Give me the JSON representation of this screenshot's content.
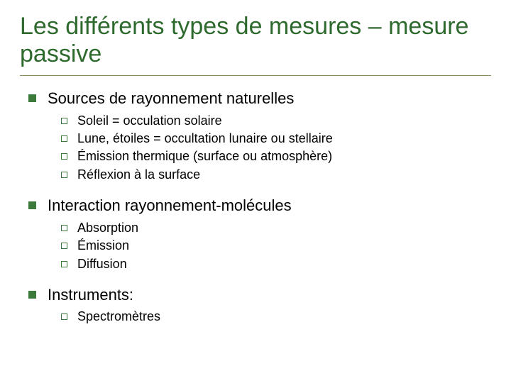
{
  "slide": {
    "title": "Les différents types de mesures – mesure passive",
    "title_color": "#2e6a2e",
    "rule_color": "#8a8a5a",
    "l1_bullet_color": "#3b7a3b",
    "l2_bullet_border": "#3b7a3b",
    "background_color": "#ffffff",
    "title_fontsize": 34,
    "l1_fontsize": 22,
    "l2_fontsize": 18,
    "sections": [
      {
        "heading": "Sources de rayonnement naturelles",
        "items": [
          "Soleil = occulation solaire",
          "Lune, étoiles = occultation lunaire ou stellaire",
          "Émission thermique (surface ou atmosphère)",
          "Réflexion à la surface"
        ]
      },
      {
        "heading": "Interaction rayonnement-molécules",
        "items": [
          "Absorption",
          "Émission",
          "Diffusion"
        ]
      },
      {
        "heading": "Instruments:",
        "items": [
          "Spectromètres"
        ]
      }
    ]
  }
}
